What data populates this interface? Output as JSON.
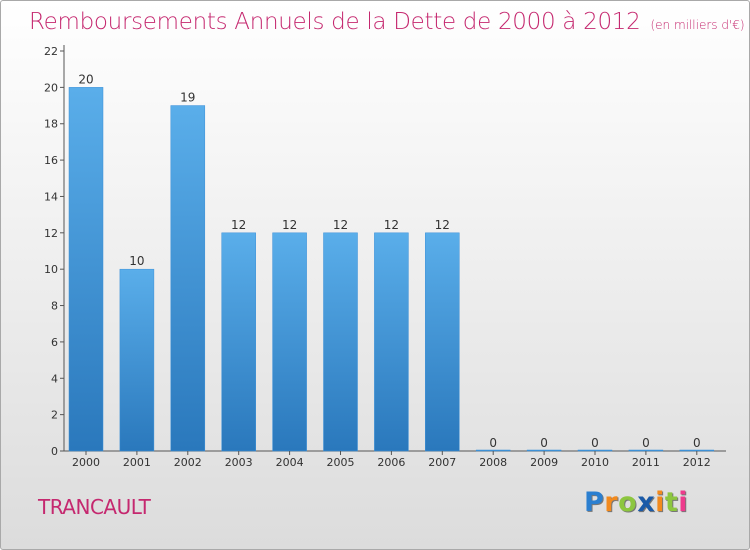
{
  "chart_data": {
    "type": "bar",
    "title": "Remboursements Annuels de la Dette de 2000 à 2012",
    "subtitle": "(en milliers d'€)",
    "categories": [
      "2000",
      "2001",
      "2002",
      "2003",
      "2004",
      "2005",
      "2006",
      "2007",
      "2008",
      "2009",
      "2010",
      "2011",
      "2012"
    ],
    "values": [
      20,
      10,
      19,
      12,
      12,
      12,
      12,
      12,
      0,
      0,
      0,
      0,
      0
    ],
    "ylim": [
      0,
      22
    ],
    "yticks": [
      0,
      2,
      4,
      6,
      8,
      10,
      12,
      14,
      16,
      18,
      20,
      22
    ],
    "grid": false,
    "bar_color_top": "#5aaeea",
    "bar_color_bottom": "#2a78bc"
  },
  "place_name": "TRANCAULT",
  "logo": {
    "text": "Proxiti",
    "letters": [
      "P",
      "r",
      "o",
      "x",
      "i",
      "t",
      "i"
    ],
    "colors": [
      "#2b7fd0",
      "#f28a1e",
      "#8dc63f",
      "#1a5aa8",
      "#f28a1e",
      "#8dc63f",
      "#ee3a8c"
    ]
  }
}
